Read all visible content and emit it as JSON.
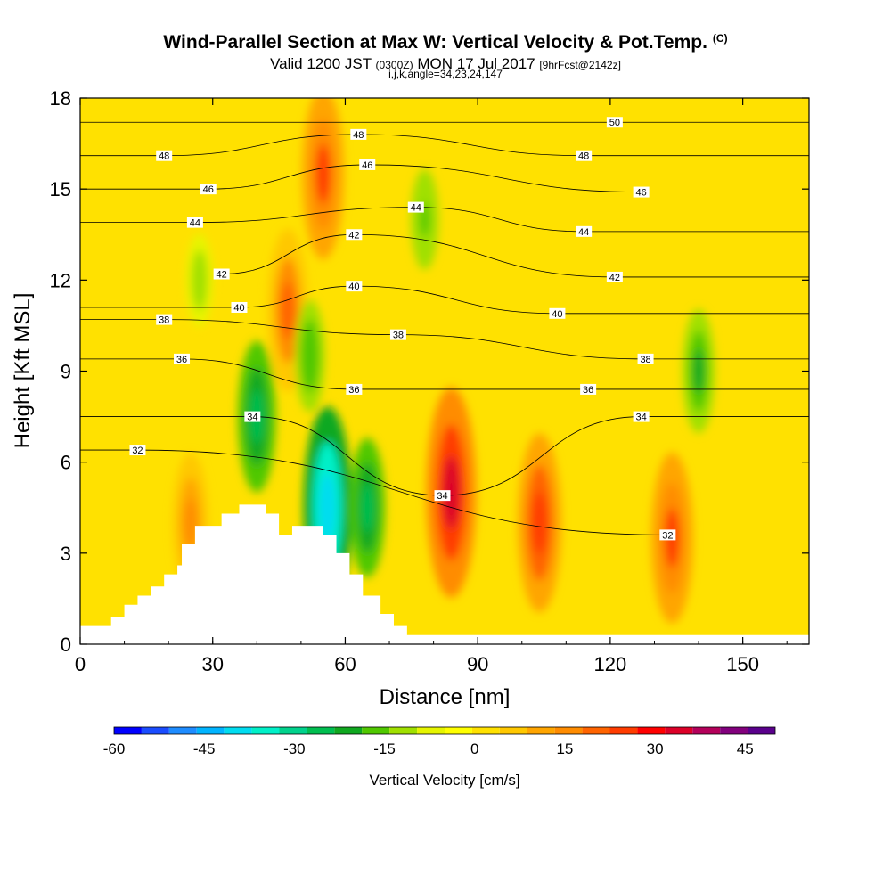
{
  "header": {
    "title": "Wind-Parallel Section at Max W: Vertical Velocity & Pot.Temp.",
    "title_mark": "(C)",
    "valid_prefix": "Valid 1200 JST",
    "valid_utc": "(0300Z)",
    "valid_date": "MON 17 Jul 2017",
    "forecast": "[9hrFcst@2142z]",
    "grid_info": "i,j,k,angle=34,23,24,147"
  },
  "chart_data": {
    "type": "heatmap",
    "xlabel": "Distance [nm]",
    "ylabel": "Height [Kft MSL]",
    "xlim": [
      0,
      165
    ],
    "ylim": [
      0,
      18
    ],
    "x_ticks": [
      "0",
      "30",
      "60",
      "90",
      "120",
      "150"
    ],
    "y_ticks": [
      "0",
      "3",
      "6",
      "9",
      "12",
      "15",
      "18"
    ],
    "colorbar": {
      "label": "Vertical Velocity [cm/s]",
      "range": [
        -60,
        50
      ],
      "step": 5,
      "tick_labels": [
        "-60",
        "-45",
        "-30",
        "-15",
        "0",
        "15",
        "30",
        "45"
      ],
      "colors": [
        "#0000ff",
        "#1a4cff",
        "#1e8cff",
        "#00b4ff",
        "#00dcf0",
        "#00f0c8",
        "#00d28c",
        "#00be50",
        "#10a820",
        "#50c800",
        "#a0e000",
        "#e6f500",
        "#ffff00",
        "#ffe100",
        "#ffc800",
        "#ffa500",
        "#ff8c00",
        "#ff6400",
        "#ff3c00",
        "#ff0000",
        "#dc0028",
        "#b4005a",
        "#82007d",
        "#5a008c"
      ]
    },
    "vertical_velocity_features": [
      {
        "x": 84,
        "y": 5,
        "value": 40
      },
      {
        "x": 104,
        "y": 4,
        "value": 32
      },
      {
        "x": 134,
        "y": 3.5,
        "value": 30
      },
      {
        "x": 25,
        "y": 4,
        "value": 22
      },
      {
        "x": 47,
        "y": 11,
        "value": 28
      },
      {
        "x": 55,
        "y": 15.5,
        "value": 30
      },
      {
        "x": 56,
        "y": 4.5,
        "value": -38
      },
      {
        "x": 65,
        "y": 4.5,
        "value": -22
      },
      {
        "x": 40,
        "y": 7.5,
        "value": -25
      },
      {
        "x": 52,
        "y": 9.5,
        "value": -15
      },
      {
        "x": 140,
        "y": 9,
        "value": -18
      },
      {
        "x": 78,
        "y": 14,
        "value": -12
      },
      {
        "x": 27,
        "y": 12,
        "value": -10
      }
    ],
    "potential_temperature_contours": [
      {
        "label": "32",
        "x": 13,
        "y": 6.4
      },
      {
        "label": "34",
        "x": 39,
        "y": 7.5
      },
      {
        "label": "36",
        "x": 23,
        "y": 9.4
      },
      {
        "label": "38",
        "x": 19,
        "y": 10.7
      },
      {
        "label": "40",
        "x": 36,
        "y": 11.1
      },
      {
        "label": "42",
        "x": 32,
        "y": 12.2
      },
      {
        "label": "44",
        "x": 26,
        "y": 13.9
      },
      {
        "label": "46",
        "x": 29,
        "y": 15
      },
      {
        "label": "48",
        "x": 19,
        "y": 16.1
      },
      {
        "label": "36",
        "x": 62,
        "y": 8.4
      },
      {
        "label": "38",
        "x": 72,
        "y": 10.2
      },
      {
        "label": "40",
        "x": 62,
        "y": 11.8
      },
      {
        "label": "42",
        "x": 62,
        "y": 13.5
      },
      {
        "label": "44",
        "x": 76,
        "y": 14.4
      },
      {
        "label": "46",
        "x": 65,
        "y": 15.8
      },
      {
        "label": "48",
        "x": 63,
        "y": 16.8
      },
      {
        "label": "34",
        "x": 82,
        "y": 4.9
      },
      {
        "label": "40",
        "x": 108,
        "y": 10.9
      },
      {
        "label": "36",
        "x": 115,
        "y": 8.4
      },
      {
        "label": "38",
        "x": 128,
        "y": 9.4
      },
      {
        "label": "34",
        "x": 127,
        "y": 7.5
      },
      {
        "label": "42",
        "x": 121,
        "y": 12.1
      },
      {
        "label": "44",
        "x": 114,
        "y": 13.6
      },
      {
        "label": "46",
        "x": 127,
        "y": 14.9
      },
      {
        "label": "48",
        "x": 114,
        "y": 16.1
      },
      {
        "label": "50",
        "x": 121,
        "y": 17.2
      },
      {
        "label": "32",
        "x": 133,
        "y": 3.6
      }
    ],
    "terrain": [
      [
        0,
        0.6
      ],
      [
        7,
        0.6
      ],
      [
        7,
        0.9
      ],
      [
        10,
        0.9
      ],
      [
        10,
        1.3
      ],
      [
        13,
        1.3
      ],
      [
        13,
        1.6
      ],
      [
        16,
        1.6
      ],
      [
        16,
        1.9
      ],
      [
        19,
        1.9
      ],
      [
        19,
        2.3
      ],
      [
        22,
        2.3
      ],
      [
        22,
        2.6
      ],
      [
        23,
        2.6
      ],
      [
        23,
        3.3
      ],
      [
        26,
        3.3
      ],
      [
        26,
        3.9
      ],
      [
        32,
        3.9
      ],
      [
        32,
        4.3
      ],
      [
        36,
        4.3
      ],
      [
        36,
        4.6
      ],
      [
        42,
        4.6
      ],
      [
        42,
        4.3
      ],
      [
        45,
        4.3
      ],
      [
        45,
        3.6
      ],
      [
        48,
        3.6
      ],
      [
        48,
        3.9
      ],
      [
        55,
        3.9
      ],
      [
        55,
        3.6
      ],
      [
        58,
        3.6
      ],
      [
        58,
        3
      ],
      [
        61,
        3
      ],
      [
        61,
        2.3
      ],
      [
        64,
        2.3
      ],
      [
        64,
        1.6
      ],
      [
        68,
        1.6
      ],
      [
        68,
        1
      ],
      [
        71,
        1
      ],
      [
        71,
        0.6
      ],
      [
        74,
        0.6
      ],
      [
        74,
        0.3
      ],
      [
        165,
        0.3
      ]
    ]
  }
}
